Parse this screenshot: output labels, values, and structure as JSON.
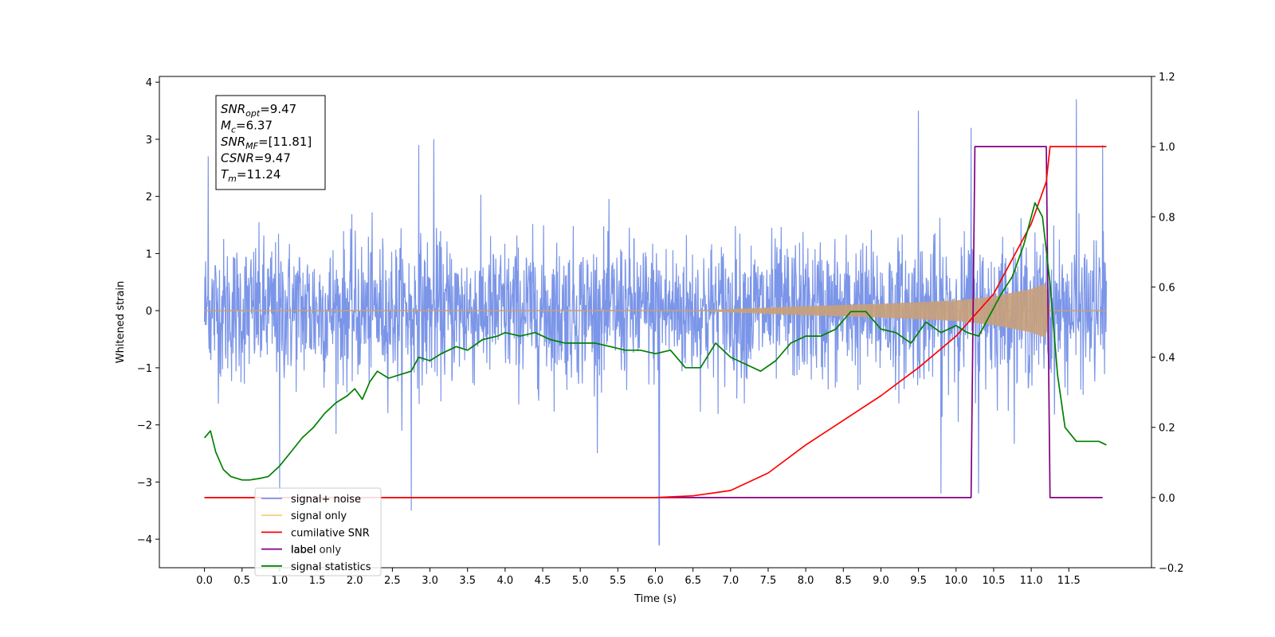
{
  "chart_data": {
    "type": "line",
    "xlabel": "Time (s)",
    "ylabel_left": "Whitened strain",
    "ylabel_right": "",
    "xlim": [
      -0.6,
      12.6
    ],
    "ylim_left": [
      -4.5,
      4.1
    ],
    "ylim_right": [
      -0.2,
      1.2
    ],
    "x_ticks": [
      0.0,
      0.5,
      1.0,
      1.5,
      2.0,
      2.5,
      3.0,
      3.5,
      4.0,
      4.5,
      5.0,
      5.5,
      6.0,
      6.5,
      7.0,
      7.5,
      8.0,
      8.5,
      9.0,
      9.5,
      10.0,
      10.5,
      11.0,
      11.5
    ],
    "y_ticks_left": [
      -4,
      -3,
      -2,
      -1,
      0,
      1,
      2,
      3,
      4
    ],
    "y_ticks_right": [
      -0.2,
      0.0,
      0.2,
      0.4,
      0.6,
      0.8,
      1.0,
      1.2
    ],
    "grid": false,
    "legend_position": "lower-left",
    "stats_box": [
      {
        "base": "SNR",
        "sub": "opt",
        "value": "=9.47"
      },
      {
        "base": "M",
        "sub": "c",
        "value": "=6.37"
      },
      {
        "base": "SNR",
        "sub": "MF",
        "value": "=[11.81]"
      },
      {
        "base": "CSNR",
        "sub": "",
        "value": "=9.47"
      },
      {
        "base": "T",
        "sub": "m",
        "value": "=11.24"
      }
    ],
    "series": [
      {
        "name": "signal+ noise",
        "color": "#7b95e8",
        "axis": "left",
        "description_points": {
          "x_range": [
            0.0,
            12.0
          ],
          "typical_band": [
            -1.7,
            1.8
          ],
          "notable_peaks": [
            {
              "x": 0.05,
              "y": 2.7
            },
            {
              "x": 2.85,
              "y": 2.9
            },
            {
              "x": 3.05,
              "y": 3.0
            },
            {
              "x": 9.5,
              "y": 3.5
            },
            {
              "x": 10.2,
              "y": 3.2
            },
            {
              "x": 11.6,
              "y": 3.7
            },
            {
              "x": 11.95,
              "y": 2.9
            },
            {
              "x": 2.75,
              "y": -3.5
            },
            {
              "x": 6.05,
              "y": -4.1
            },
            {
              "x": 1.0,
              "y": -3.2
            },
            {
              "x": 10.3,
              "y": -3.2
            },
            {
              "x": 9.8,
              "y": -3.2
            }
          ]
        }
      },
      {
        "name": "signal only",
        "color": "#c8a07a",
        "axis": "left",
        "envelope": [
          {
            "x": 0.0,
            "amp": 0.0
          },
          {
            "x": 6.5,
            "amp": 0.0
          },
          {
            "x": 7.0,
            "amp": 0.03
          },
          {
            "x": 8.0,
            "amp": 0.08
          },
          {
            "x": 9.0,
            "amp": 0.12
          },
          {
            "x": 10.0,
            "amp": 0.18
          },
          {
            "x": 10.5,
            "amp": 0.25
          },
          {
            "x": 11.0,
            "amp": 0.38
          },
          {
            "x": 11.2,
            "amp": 0.48
          },
          {
            "x": 11.25,
            "amp": 0.0
          },
          {
            "x": 12.0,
            "amp": 0.0
          }
        ]
      },
      {
        "name": "cumilative SNR",
        "color": "#ff0000",
        "axis": "right",
        "x": [
          0.0,
          6.0,
          6.5,
          7.0,
          7.5,
          8.0,
          8.5,
          9.0,
          9.5,
          10.0,
          10.5,
          11.0,
          11.2,
          11.25,
          11.5,
          12.0
        ],
        "y": [
          0.0,
          0.0,
          0.005,
          0.02,
          0.07,
          0.15,
          0.22,
          0.29,
          0.37,
          0.46,
          0.58,
          0.78,
          0.9,
          1.0,
          1.0,
          1.0
        ]
      },
      {
        "name": "label",
        "color": "#800080",
        "axis": "right",
        "x": [
          0.0,
          10.2,
          10.25,
          11.2,
          11.25,
          11.95
        ],
        "y": [
          0.0,
          0.0,
          1.0,
          1.0,
          0.0,
          0.0
        ]
      },
      {
        "name": "label only",
        "color": "#d0d0d0",
        "axis": "right",
        "x": [],
        "y": []
      },
      {
        "name": "signal statistics",
        "color": "#008000",
        "axis": "right",
        "x": [
          0.0,
          0.08,
          0.15,
          0.25,
          0.35,
          0.5,
          0.6,
          0.75,
          0.85,
          1.0,
          1.15,
          1.3,
          1.45,
          1.6,
          1.75,
          1.9,
          2.0,
          2.1,
          2.2,
          2.3,
          2.45,
          2.6,
          2.75,
          2.85,
          3.0,
          3.15,
          3.35,
          3.5,
          3.7,
          3.9,
          4.0,
          4.2,
          4.4,
          4.6,
          4.8,
          5.0,
          5.2,
          5.4,
          5.6,
          5.8,
          6.0,
          6.2,
          6.4,
          6.6,
          6.8,
          7.0,
          7.2,
          7.4,
          7.6,
          7.8,
          8.0,
          8.2,
          8.4,
          8.6,
          8.8,
          9.0,
          9.2,
          9.4,
          9.6,
          9.8,
          10.0,
          10.15,
          10.3,
          10.45,
          10.6,
          10.75,
          10.9,
          11.05,
          11.15,
          11.25,
          11.35,
          11.45,
          11.6,
          11.75,
          11.9,
          12.0
        ],
        "y": [
          0.17,
          0.19,
          0.13,
          0.08,
          0.06,
          0.05,
          0.05,
          0.055,
          0.06,
          0.09,
          0.13,
          0.17,
          0.2,
          0.24,
          0.27,
          0.29,
          0.31,
          0.28,
          0.33,
          0.36,
          0.34,
          0.35,
          0.36,
          0.4,
          0.39,
          0.41,
          0.43,
          0.42,
          0.45,
          0.46,
          0.47,
          0.46,
          0.47,
          0.45,
          0.44,
          0.44,
          0.44,
          0.43,
          0.42,
          0.42,
          0.41,
          0.42,
          0.37,
          0.37,
          0.44,
          0.4,
          0.38,
          0.36,
          0.39,
          0.44,
          0.46,
          0.46,
          0.48,
          0.53,
          0.53,
          0.48,
          0.47,
          0.44,
          0.5,
          0.47,
          0.49,
          0.47,
          0.46,
          0.52,
          0.58,
          0.63,
          0.72,
          0.84,
          0.8,
          0.61,
          0.35,
          0.2,
          0.16,
          0.16,
          0.16,
          0.15
        ]
      }
    ]
  }
}
